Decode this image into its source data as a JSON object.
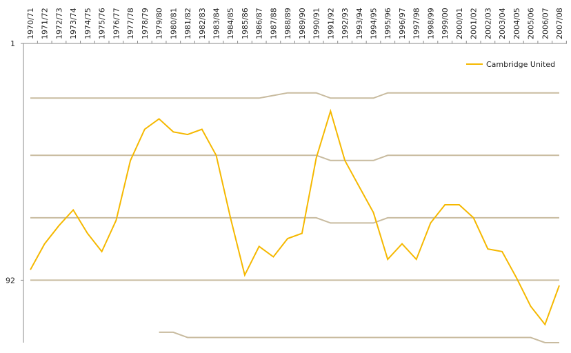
{
  "chart_data": {
    "type": "line",
    "categories": [
      "1970/71",
      "1971/72",
      "1972/73",
      "1973/74",
      "1974/75",
      "1975/76",
      "1976/77",
      "1977/78",
      "1978/79",
      "1979/80",
      "1980/81",
      "1981/82",
      "1982/83",
      "1983/84",
      "1984/85",
      "1985/86",
      "1986/87",
      "1987/88",
      "1988/89",
      "1989/90",
      "1990/91",
      "1991/92",
      "1992/93",
      "1993/94",
      "1994/95",
      "1995/96",
      "1996/97",
      "1997/98",
      "1998/99",
      "1999/00",
      "2000/01",
      "2001/02",
      "2002/03",
      "2003/04",
      "2004/05",
      "2005/06",
      "2006/07",
      "2007/08"
    ],
    "series": [
      {
        "name": "Cambridge United",
        "color": "#f5b800",
        "values": [
          88,
          78,
          71,
          65,
          74,
          81,
          69,
          46,
          34,
          30,
          35,
          36,
          34,
          44,
          68,
          90,
          79,
          83,
          76,
          74,
          45,
          27,
          46,
          56,
          66,
          84,
          78,
          84,
          70,
          63,
          63,
          68,
          80,
          81,
          91,
          102,
          109,
          94
        ]
      }
    ],
    "boundary_lines": [
      {
        "color": "#c8bb9f",
        "values": [
          22,
          22,
          22,
          22,
          22,
          22,
          22,
          22,
          22,
          22,
          22,
          22,
          22,
          22,
          22,
          22,
          22,
          21,
          20,
          20,
          20,
          22,
          22,
          22,
          22,
          20,
          20,
          20,
          20,
          20,
          20,
          20,
          20,
          20,
          20,
          20,
          20,
          20
        ]
      },
      {
        "color": "#c8bb9f",
        "values": [
          44,
          44,
          44,
          44,
          44,
          44,
          44,
          44,
          44,
          44,
          44,
          44,
          44,
          44,
          44,
          44,
          44,
          44,
          44,
          44,
          44,
          46,
          46,
          46,
          46,
          44,
          44,
          44,
          44,
          44,
          44,
          44,
          44,
          44,
          44,
          44,
          44,
          44
        ]
      },
      {
        "color": "#c8bb9f",
        "values": [
          68,
          68,
          68,
          68,
          68,
          68,
          68,
          68,
          68,
          68,
          68,
          68,
          68,
          68,
          68,
          68,
          68,
          68,
          68,
          68,
          68,
          70,
          70,
          70,
          70,
          68,
          68,
          68,
          68,
          68,
          68,
          68,
          68,
          68,
          68,
          68,
          68,
          68
        ]
      },
      {
        "color": "#c8bb9f",
        "values": [
          92,
          92,
          92,
          92,
          92,
          92,
          92,
          92,
          92,
          92,
          92,
          92,
          92,
          92,
          92,
          92,
          92,
          92,
          92,
          92,
          92,
          92,
          92,
          92,
          92,
          92,
          92,
          92,
          92,
          92,
          92,
          92,
          92,
          92,
          92,
          92,
          92,
          92
        ]
      },
      {
        "color": "#c8bb9f",
        "values": [
          null,
          null,
          null,
          null,
          null,
          null,
          null,
          null,
          null,
          112,
          112,
          114,
          114,
          114,
          114,
          114,
          114,
          114,
          114,
          114,
          114,
          114,
          114,
          114,
          114,
          114,
          114,
          114,
          114,
          114,
          114,
          114,
          114,
          114,
          114,
          114,
          116,
          116
        ]
      }
    ],
    "ylim": [
      1,
      116
    ],
    "yticks": [
      1,
      92
    ],
    "y_inverted": true,
    "legend": "top-right"
  }
}
